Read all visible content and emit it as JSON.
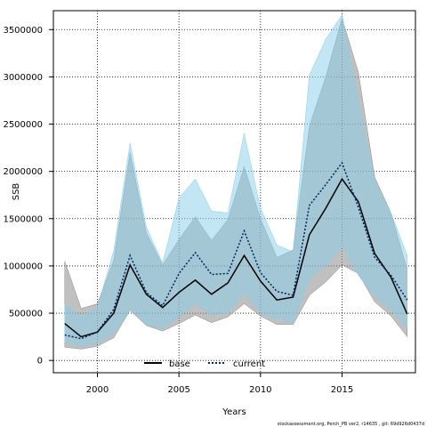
{
  "chart_data": {
    "type": "line",
    "xlabel": "Years",
    "ylabel": "SSB",
    "xlim": [
      1997.3,
      2019.5
    ],
    "ylim": [
      -130000,
      3700000
    ],
    "xticks": [
      2000,
      2005,
      2010,
      2015
    ],
    "yticks": [
      0,
      500000,
      1000000,
      1500000,
      2000000,
      2500000,
      3000000,
      3500000
    ],
    "grid": true,
    "grid_style": "dotted",
    "legend_position": "bottom-center",
    "x": [
      1998,
      1999,
      2000,
      2001,
      2002,
      2003,
      2004,
      2005,
      2006,
      2007,
      2008,
      2009,
      2010,
      2011,
      2012,
      2013,
      2014,
      2015,
      2016,
      2017,
      2018,
      2019
    ],
    "series": [
      {
        "name": "base",
        "color": "#000000",
        "line_style": "solid",
        "band_color": "#8c8c8c",
        "values": [
          390000,
          250000,
          300000,
          500000,
          1010000,
          700000,
          560000,
          720000,
          850000,
          700000,
          820000,
          1110000,
          840000,
          640000,
          670000,
          1330000,
          1610000,
          1920000,
          1680000,
          1130000,
          880000,
          490000
        ],
        "lower": [
          140000,
          120000,
          150000,
          240000,
          530000,
          370000,
          310000,
          390000,
          480000,
          400000,
          460000,
          600000,
          470000,
          380000,
          380000,
          690000,
          830000,
          1010000,
          920000,
          620000,
          470000,
          250000
        ],
        "upper": [
          1050000,
          550000,
          600000,
          1060000,
          2200000,
          1350000,
          1010000,
          1280000,
          1520000,
          1270000,
          1490000,
          2050000,
          1500000,
          1090000,
          1170000,
          2480000,
          3000000,
          3620000,
          3050000,
          1940000,
          1560000,
          960000
        ]
      },
      {
        "name": "current",
        "color": "#00265c",
        "line_style": "dotted",
        "band_color": "#87ceeb",
        "values": [
          270000,
          230000,
          300000,
          540000,
          1110000,
          720000,
          580000,
          920000,
          1140000,
          910000,
          920000,
          1370000,
          930000,
          730000,
          690000,
          1640000,
          1860000,
          2090000,
          1620000,
          1090000,
          900000,
          640000
        ],
        "lower": [
          190000,
          150000,
          180000,
          280000,
          540000,
          380000,
          340000,
          460000,
          600000,
          480000,
          500000,
          710000,
          500000,
          440000,
          400000,
          860000,
          1000000,
          1210000,
          900000,
          670000,
          530000,
          340000
        ],
        "upper": [
          590000,
          470000,
          560000,
          1160000,
          2300000,
          1410000,
          1030000,
          1720000,
          1920000,
          1580000,
          1560000,
          2400000,
          1610000,
          1220000,
          1150000,
          3020000,
          3400000,
          3660000,
          2750000,
          1890000,
          1560000,
          1110000
        ]
      }
    ]
  },
  "footnote": "stockassessment.org, Perch_PB ver2, r14635 , git: 69d926d0437d"
}
